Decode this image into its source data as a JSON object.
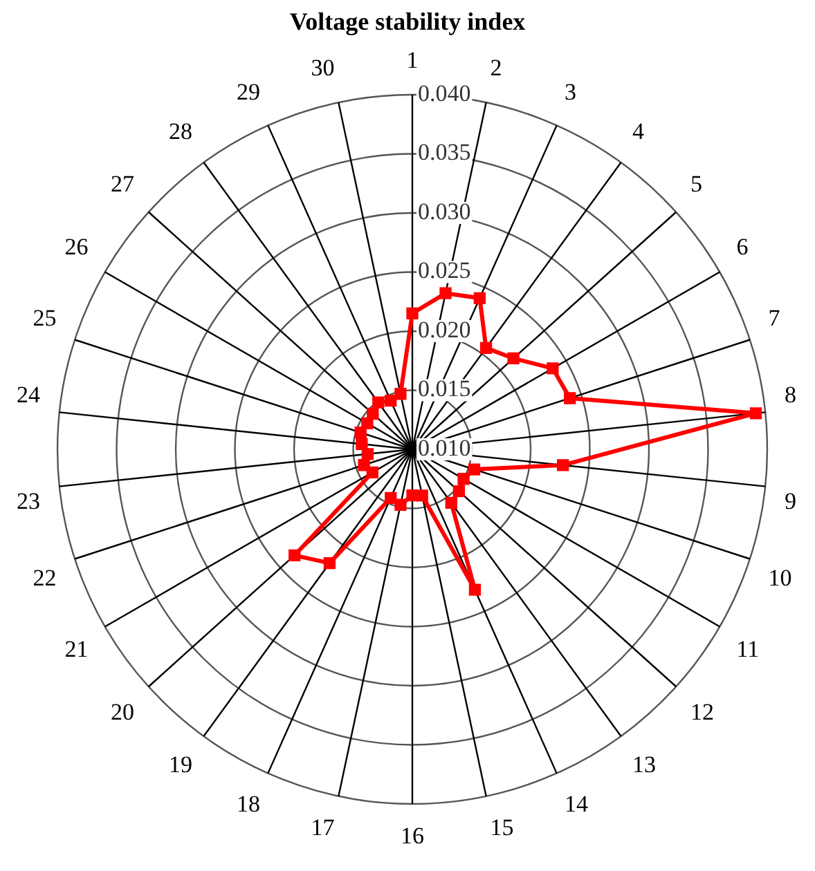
{
  "chart_data": {
    "type": "radar",
    "title": "Voltage stability index",
    "categories": [
      "1",
      "2",
      "3",
      "4",
      "5",
      "6",
      "7",
      "8",
      "9",
      "10",
      "11",
      "12",
      "13",
      "14",
      "15",
      "16",
      "17",
      "18",
      "19",
      "20",
      "21",
      "22",
      "23",
      "24",
      "25",
      "26",
      "27",
      "28",
      "29",
      "30"
    ],
    "series": [
      {
        "color": "#ff0000",
        "values": [
          0.0215,
          0.0235,
          0.024,
          0.0206,
          0.0215,
          0.0237,
          0.024,
          0.0392,
          0.0228,
          0.0155,
          0.015,
          0.0153,
          0.0156,
          0.023,
          0.014,
          0.0139,
          0.0148,
          0.0145,
          0.0219,
          0.0234,
          0.0139,
          0.0143,
          0.0138,
          0.0143,
          0.0146,
          0.0144,
          0.0145,
          0.0149,
          0.0145,
          0.0148
        ]
      }
    ],
    "ylim": [
      0.01,
      0.04
    ],
    "yticks": [
      {
        "value": 0.01,
        "label": "0.010"
      },
      {
        "value": 0.015,
        "label": "0.015"
      },
      {
        "value": 0.02,
        "label": "0.020"
      },
      {
        "value": 0.025,
        "label": "0.025"
      },
      {
        "value": 0.03,
        "label": "0.030"
      },
      {
        "value": 0.035,
        "label": "0.035"
      },
      {
        "value": 0.04,
        "label": "0.040"
      }
    ],
    "grid": true,
    "legend": false,
    "marker": "square",
    "line_style": "solid"
  }
}
